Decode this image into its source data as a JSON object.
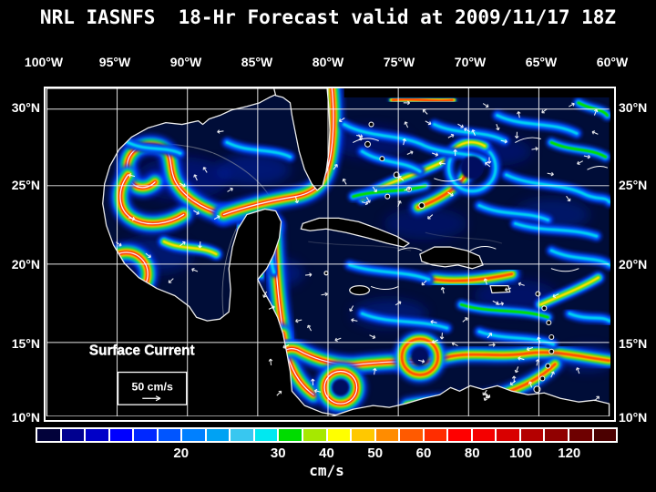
{
  "title": "NRL IASNFS  18-Hr Forecast valid at 2009/11/17 18Z",
  "axes": {
    "lon": [
      "100°W",
      "95°W",
      "90°W",
      "85°W",
      "80°W",
      "75°W",
      "70°W",
      "65°W",
      "60°W"
    ],
    "lat_left": [
      "30°N",
      "25°N",
      "20°N",
      "15°N",
      "10°N"
    ],
    "lat_right": [
      "30°N",
      "25°N",
      "20°N",
      "15°N",
      "10°N"
    ]
  },
  "overlay": {
    "label": "Surface Current",
    "scale_label": "50 cm/s"
  },
  "colorbar": {
    "unit": "cm/s",
    "tick_labels": [
      "20",
      "30",
      "40",
      "50",
      "60",
      "80",
      "100",
      "120"
    ],
    "tick_positions": [
      0.25,
      0.4167,
      0.5,
      0.5833,
      0.6667,
      0.75,
      0.8333,
      0.9167
    ],
    "segment_colors": [
      "#02023a",
      "#00008f",
      "#0000c8",
      "#0000ff",
      "#0028ff",
      "#0055ff",
      "#0080ff",
      "#00a2f3",
      "#38c7f0",
      "#00e8f0",
      "#00dc00",
      "#a6e800",
      "#ffff00",
      "#ffc800",
      "#ff8c00",
      "#ff5a00",
      "#ff2d00",
      "#ff0000",
      "#f40000",
      "#d90000",
      "#b40000",
      "#900000",
      "#6e0000",
      "#4b0000"
    ]
  },
  "chart_data": {
    "type": "heatmap",
    "title": "NRL IASNFS  18-Hr Forecast valid at 2009/11/17 18Z",
    "variable": "Surface Current",
    "unit": "cm/s",
    "colorbar_ticks": [
      20,
      30,
      40,
      50,
      60,
      80,
      100,
      120
    ],
    "lon_range": [
      "100°W",
      "60°W"
    ],
    "lat_range": [
      "10°N",
      "30°N"
    ],
    "reference_vector": "50 cm/s"
  }
}
